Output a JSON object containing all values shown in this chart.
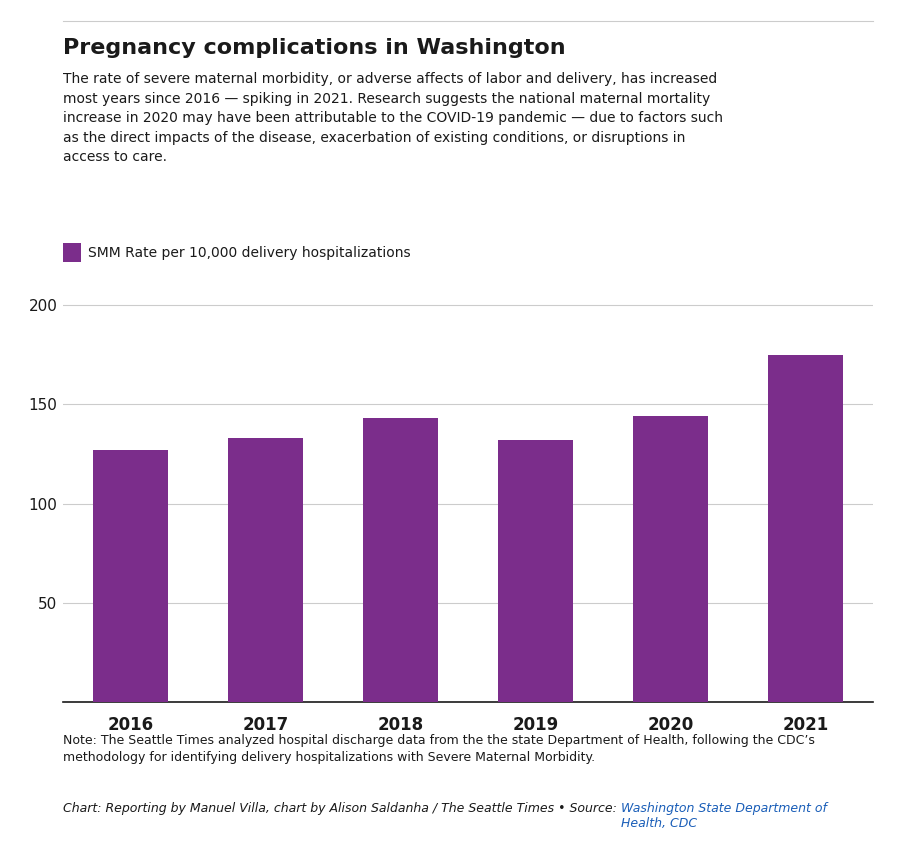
{
  "title": "Pregnancy complications in Washington",
  "subtitle": "The rate of severe maternal morbidity, or adverse affects of labor and delivery, has increased\nmost years since 2016 — spiking in 2021. Research suggests the national maternal mortality\nincrease in 2020 may have been attributable to the COVID-19 pandemic — due to factors such\nas the direct impacts of the disease, exacerbation of existing conditions, or disruptions in\naccess to care.",
  "legend_label": "SMM Rate per 10,000 delivery hospitalizations",
  "years": [
    "2016",
    "2017",
    "2018",
    "2019",
    "2020",
    "2021"
  ],
  "values": [
    127,
    133,
    143,
    132,
    144,
    175
  ],
  "bar_color": "#7B2D8B",
  "yticks": [
    0,
    50,
    100,
    150,
    200
  ],
  "ylim": [
    0,
    210
  ],
  "note_text": "Note: The Seattle Times analyzed hospital discharge data from the the state Department of Health, following the CDC’s\nmethodology for identifying delivery hospitalizations with Severe Maternal Morbidity.",
  "chart_credit": "Chart: Reporting by Manuel Villa, chart by Alison Saldanha / The Seattle Times • Source: ",
  "chart_source_link": "Washington State Department of\nHealth, CDC",
  "background_color": "#ffffff",
  "grid_color": "#cccccc",
  "text_color": "#1a1a1a",
  "link_color": "#1a5eb8",
  "top_line_color": "#cccccc"
}
